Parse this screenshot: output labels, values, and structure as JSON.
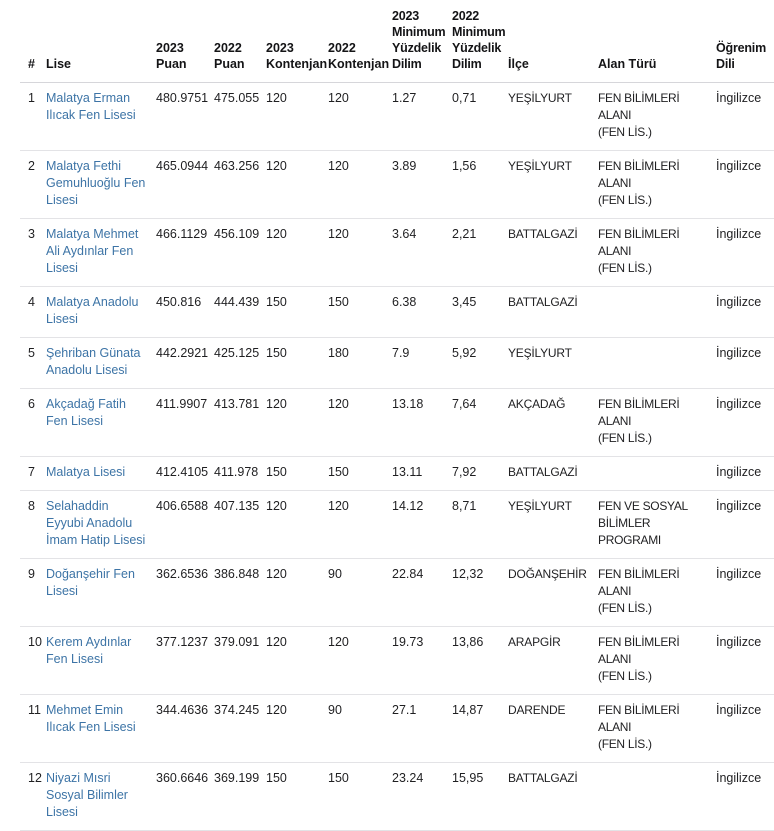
{
  "colors": {
    "link_blue": "#3d74a6",
    "text_dark": "#1f1f21",
    "row_border": "#e3e3e6",
    "header_border": "#d6d6da"
  },
  "table": {
    "columns": [
      {
        "key": "rank",
        "label": "#"
      },
      {
        "key": "lise",
        "label": "Lise"
      },
      {
        "key": "puan_2023",
        "label": "2023 Puan"
      },
      {
        "key": "puan_2022",
        "label": "2022 Puan"
      },
      {
        "key": "kontenjan_2023",
        "label": "2023 Kontenjan"
      },
      {
        "key": "kontenjan_2022",
        "label": "2022 Kontenjan"
      },
      {
        "key": "dilim_2023",
        "label": "2023 Minimum Yüzdelik Dilim"
      },
      {
        "key": "dilim_2022",
        "label": "2022 Minimum Yüzdelik Dilim"
      },
      {
        "key": "ilce",
        "label": "İlçe"
      },
      {
        "key": "alan_turu",
        "label": "Alan Türü"
      },
      {
        "key": "ogrenim_dili",
        "label": "Öğrenim Dili"
      }
    ],
    "rows": [
      {
        "rank": "1",
        "lise": "Malatya Erman Ilıcak Fen Lisesi",
        "puan_2023": "480.9751",
        "puan_2022": "475.055",
        "kontenjan_2023": "120",
        "kontenjan_2022": "120",
        "dilim_2023": "1.27",
        "dilim_2022": "0,71",
        "ilce": "YEŞİLYURT",
        "alan_turu": "FEN BİLİMLERİ ALANI\n(FEN LİS.)",
        "ogrenim_dili": "İngilizce"
      },
      {
        "rank": "2",
        "lise": "Malatya Fethi Gemuhluoğlu Fen Lisesi",
        "puan_2023": "465.0944",
        "puan_2022": "463.256",
        "kontenjan_2023": "120",
        "kontenjan_2022": "120",
        "dilim_2023": "3.89",
        "dilim_2022": "1,56",
        "ilce": "YEŞİLYURT",
        "alan_turu": "FEN BİLİMLERİ ALANI\n(FEN LİS.)",
        "ogrenim_dili": "İngilizce"
      },
      {
        "rank": "3",
        "lise": "Malatya Mehmet Ali Aydınlar Fen Lisesi",
        "puan_2023": "466.1129",
        "puan_2022": "456.109",
        "kontenjan_2023": "120",
        "kontenjan_2022": "120",
        "dilim_2023": "3.64",
        "dilim_2022": "2,21",
        "ilce": "BATTALGAZİ",
        "alan_turu": "FEN BİLİMLERİ ALANI\n(FEN LİS.)",
        "ogrenim_dili": "İngilizce"
      },
      {
        "rank": "4",
        "lise": "Malatya Anadolu Lisesi",
        "puan_2023": "450.816",
        "puan_2022": "444.439",
        "kontenjan_2023": "150",
        "kontenjan_2022": "150",
        "dilim_2023": "6.38",
        "dilim_2022": "3,45",
        "ilce": "BATTALGAZİ",
        "alan_turu": "",
        "ogrenim_dili": "İngilizce"
      },
      {
        "rank": "5",
        "lise": "Şehriban Günata Anadolu Lisesi",
        "puan_2023": "442.2921",
        "puan_2022": "425.125",
        "kontenjan_2023": "150",
        "kontenjan_2022": "180",
        "dilim_2023": "7.9",
        "dilim_2022": "5,92",
        "ilce": "YEŞİLYURT",
        "alan_turu": "",
        "ogrenim_dili": "İngilizce"
      },
      {
        "rank": "6",
        "lise": "Akçadağ Fatih Fen Lisesi",
        "puan_2023": "411.9907",
        "puan_2022": "413.781",
        "kontenjan_2023": "120",
        "kontenjan_2022": "120",
        "dilim_2023": "13.18",
        "dilim_2022": "7,64",
        "ilce": "AKÇADAĞ",
        "alan_turu": "FEN BİLİMLERİ ALANI\n(FEN LİS.)",
        "ogrenim_dili": "İngilizce"
      },
      {
        "rank": "7",
        "lise": "Malatya Lisesi",
        "puan_2023": "412.4105",
        "puan_2022": "411.978",
        "kontenjan_2023": "150",
        "kontenjan_2022": "150",
        "dilim_2023": "13.11",
        "dilim_2022": "7,92",
        "ilce": "BATTALGAZİ",
        "alan_turu": "",
        "ogrenim_dili": "İngilizce"
      },
      {
        "rank": "8",
        "lise": "Selahaddin Eyyubi Anadolu İmam Hatip Lisesi",
        "puan_2023": "406.6588",
        "puan_2022": "407.135",
        "kontenjan_2023": "120",
        "kontenjan_2022": "120",
        "dilim_2023": "14.12",
        "dilim_2022": "8,71",
        "ilce": "YEŞİLYURT",
        "alan_turu": "FEN VE SOSYAL\nBİLİMLER PROGRAMI",
        "ogrenim_dili": "İngilizce"
      },
      {
        "rank": "9",
        "lise": "Doğanşehir Fen Lisesi",
        "puan_2023": "362.6536",
        "puan_2022": "386.848",
        "kontenjan_2023": "120",
        "kontenjan_2022": "90",
        "dilim_2023": "22.84",
        "dilim_2022": "12,32",
        "ilce": "DOĞANŞEHİR",
        "alan_turu": "FEN BİLİMLERİ ALANI\n(FEN LİS.)",
        "ogrenim_dili": "İngilizce"
      },
      {
        "rank": "10",
        "lise": "Kerem Aydınlar Fen Lisesi",
        "puan_2023": "377.1237",
        "puan_2022": "379.091",
        "kontenjan_2023": "120",
        "kontenjan_2022": "120",
        "dilim_2023": "19.73",
        "dilim_2022": "13,86",
        "ilce": "ARAPGİR",
        "alan_turu": "FEN BİLİMLERİ ALANI\n(FEN LİS.)",
        "ogrenim_dili": "İngilizce"
      },
      {
        "rank": "11",
        "lise": "Mehmet Emin Ilıcak Fen Lisesi",
        "puan_2023": "344.4636",
        "puan_2022": "374.245",
        "kontenjan_2023": "120",
        "kontenjan_2022": "90",
        "dilim_2023": "27.1",
        "dilim_2022": "14,87",
        "ilce": "DARENDE",
        "alan_turu": "FEN BİLİMLERİ ALANI\n(FEN LİS.)",
        "ogrenim_dili": "İngilizce"
      },
      {
        "rank": "12",
        "lise": "Niyazi Mısri Sosyal Bilimler Lisesi",
        "puan_2023": "360.6646",
        "puan_2022": "369.199",
        "kontenjan_2023": "150",
        "kontenjan_2022": "150",
        "dilim_2023": "23.24",
        "dilim_2022": "15,95",
        "ilce": "BATTALGAZİ",
        "alan_turu": "",
        "ogrenim_dili": "İngilizce"
      }
    ]
  }
}
